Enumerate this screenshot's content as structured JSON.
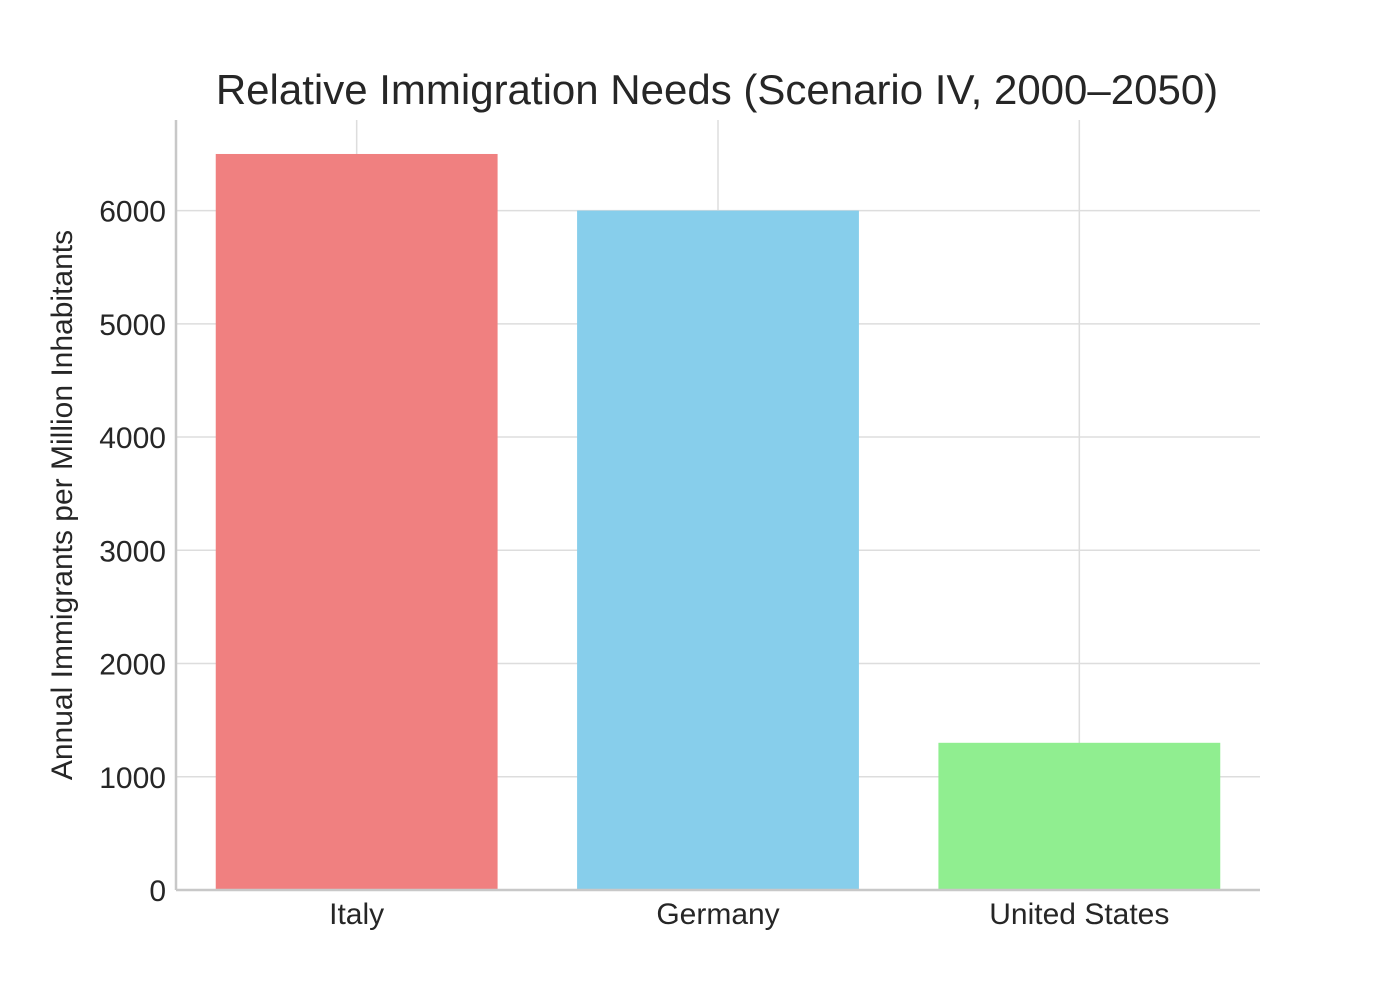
{
  "chart_data": {
    "type": "bar",
    "title": "Relative Immigration Needs (Scenario IV, 2000–2050)",
    "xlabel": "",
    "ylabel": "Annual Immigrants per Million Inhabitants",
    "categories": [
      "Italy",
      "Germany",
      "United States"
    ],
    "values": [
      6500,
      6000,
      1300
    ],
    "colors": [
      "#f08080",
      "#87ceeb",
      "#90ee90"
    ],
    "ylim": [
      0,
      6800
    ],
    "yticks": [
      0,
      1000,
      2000,
      3000,
      4000,
      5000,
      6000
    ],
    "ytick_labels": [
      "0",
      "1000",
      "2000",
      "3000",
      "4000",
      "5000",
      "6000"
    ],
    "grid": true,
    "legend": "none"
  }
}
